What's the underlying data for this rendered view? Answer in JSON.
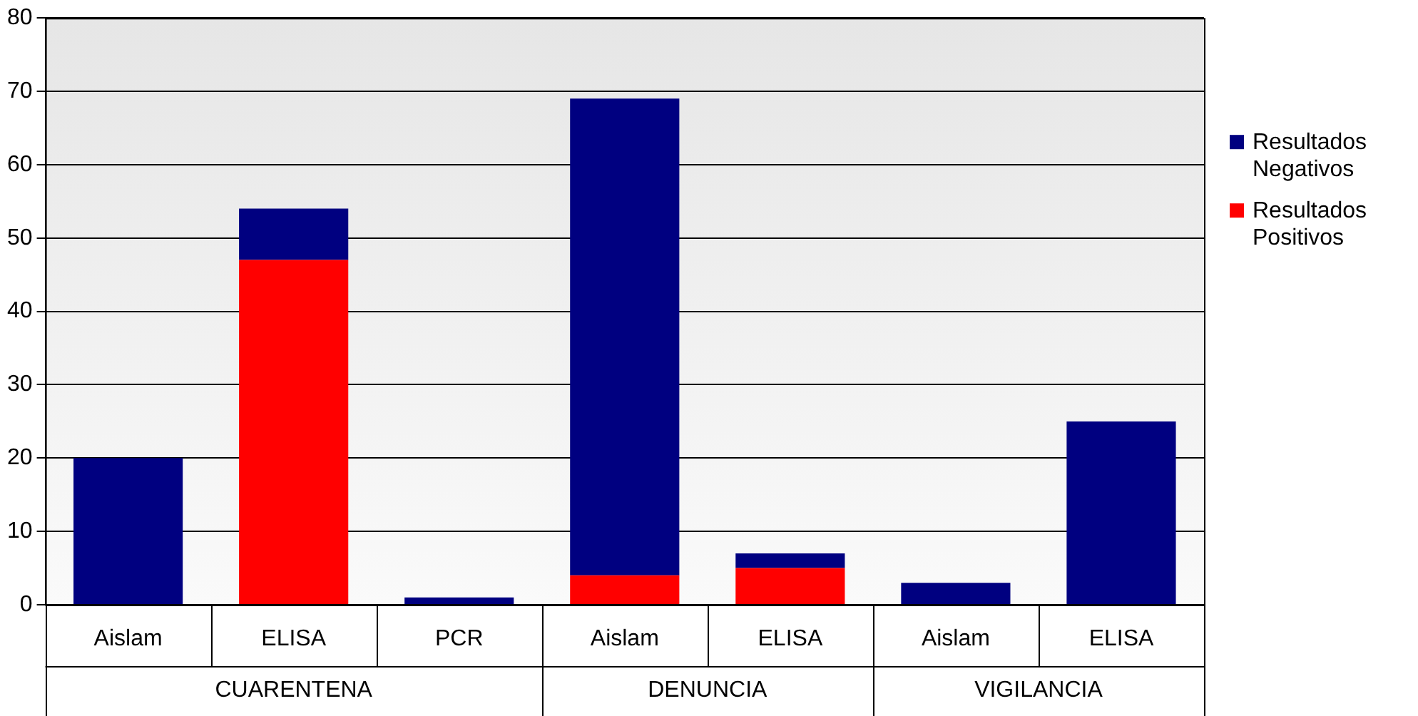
{
  "chart_data": {
    "type": "bar",
    "stacked": true,
    "categories": [
      "Aislam",
      "ELISA",
      "PCR",
      "Aislam",
      "ELISA",
      "Aislam",
      "ELISA"
    ],
    "series": [
      {
        "name": "Resultados Positivos",
        "color": "#ff0000",
        "values": [
          0,
          47,
          0,
          4,
          5,
          0,
          0
        ]
      },
      {
        "name": "Resultados Negativos",
        "color": "#000080",
        "values": [
          20,
          7,
          1,
          65,
          2,
          3,
          25
        ]
      }
    ],
    "annotations": [
      "CUARENTENA",
      "DENUNCIA",
      "VIGILANCIA"
    ],
    "ylim": [
      0,
      80
    ],
    "yticks": [
      0,
      10,
      20,
      30,
      40,
      50,
      60,
      70,
      80
    ],
    "grid": "y",
    "legend": "right"
  }
}
